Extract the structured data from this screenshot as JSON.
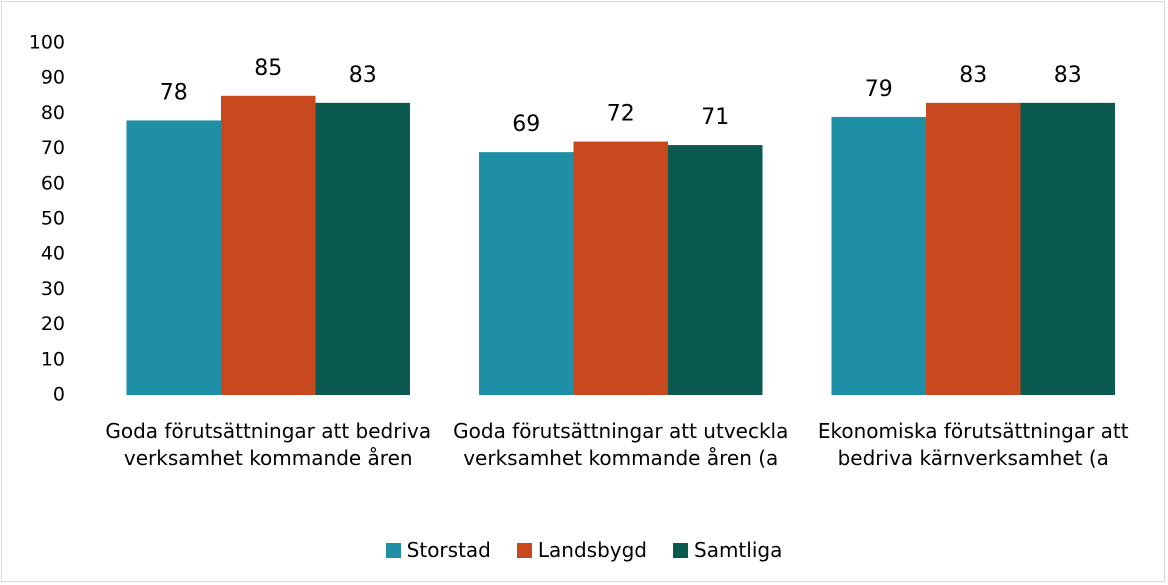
{
  "chart_data": {
    "type": "bar",
    "categories": [
      "Goda förutsättningar att bedriva verksamhet kommande åren",
      "Goda förutsättningar att utveckla verksamhet kommande åren (a",
      "Ekonomiska förutsättningar att bedriva kärnverksamhet (a"
    ],
    "series": [
      {
        "name": "Storstad",
        "color": "#1f8fa6",
        "values": [
          78,
          69,
          79
        ]
      },
      {
        "name": "Landsbygd",
        "color": "#c8491e",
        "values": [
          85,
          72,
          83
        ]
      },
      {
        "name": "Samtliga",
        "color": "#0b5a4f",
        "values": [
          83,
          71,
          83
        ]
      }
    ],
    "ylim": [
      0,
      100
    ],
    "yticks": [
      0,
      10,
      20,
      30,
      40,
      50,
      60,
      70,
      80,
      90,
      100
    ],
    "grid": false,
    "legend": "bottom"
  }
}
